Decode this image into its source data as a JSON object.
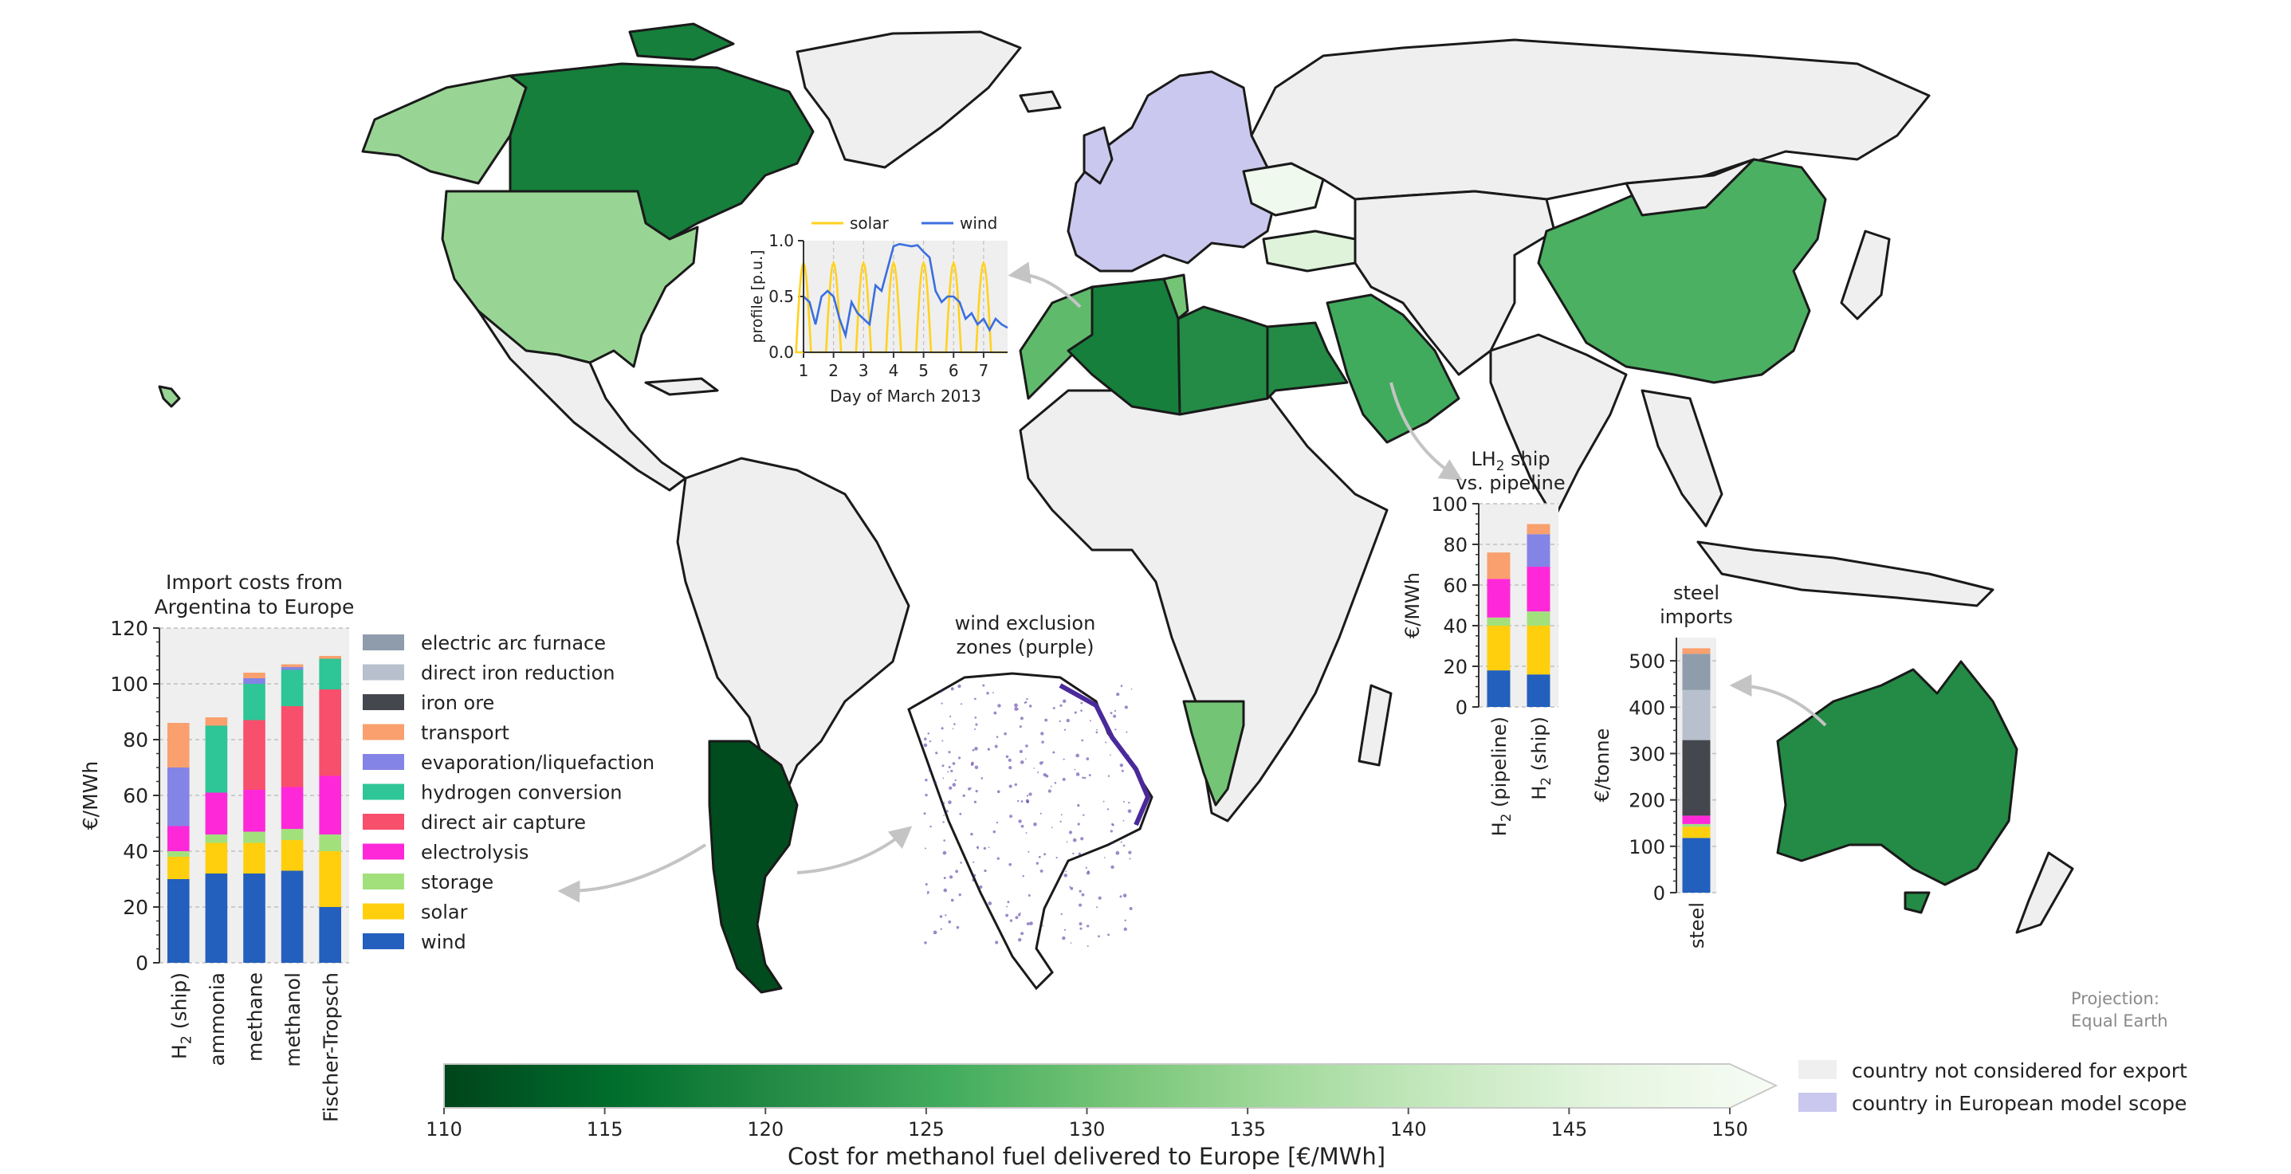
{
  "colors": {
    "country_fill_not_considered": "#efefef",
    "country_fill_europe_scope": "#cac8ee",
    "country_stroke": "#1a1a1a",
    "cmap_stops": [
      "#00441b",
      "#006d2c",
      "#238b45",
      "#41ab5d",
      "#74c476",
      "#a1d99b",
      "#c7e9c0",
      "#e5f5e0",
      "#f7fcf5"
    ],
    "grid": "#bfbfbf",
    "panel_bg": "#efefef",
    "arrow": "#c4c4c4",
    "solar_line": "#ffd21f",
    "wind_line": "#3a6ee0",
    "exclusion": "#4a2a9a"
  },
  "legend": {
    "not_considered": "country not considered for export",
    "europe_scope": "country in European model scope"
  },
  "projection_note": [
    "Projection:",
    "Equal Earth"
  ],
  "colorbar": {
    "label": "Cost for methanol fuel delivered to Europe [€/MWh]",
    "min": 110,
    "max": 150,
    "ticks": [
      "110",
      "115",
      "120",
      "125",
      "130",
      "135",
      "140",
      "145",
      "150"
    ],
    "extend": "max"
  },
  "country_costs": [
    {
      "country": "Canada",
      "value": 118
    },
    {
      "country": "Alaska",
      "value": 134
    },
    {
      "country": "United States",
      "value": 134
    },
    {
      "country": "Morocco",
      "value": 128
    },
    {
      "country": "Algeria",
      "value": 118
    },
    {
      "country": "Tunisia",
      "value": 130
    },
    {
      "country": "Libya",
      "value": 120
    },
    {
      "country": "Egypt",
      "value": 120
    },
    {
      "country": "Saudi Arabia",
      "value": 125
    },
    {
      "country": "China",
      "value": 126
    },
    {
      "country": "Namibia",
      "value": 130
    },
    {
      "country": "Argentina",
      "value": 111
    },
    {
      "country": "Australia",
      "value": 120
    },
    {
      "country": "Turkey",
      "value": 144
    },
    {
      "country": "Ukraine",
      "value": 148
    }
  ],
  "wind_exclusion": {
    "title": [
      "wind exclusion",
      "zones (purple)"
    ]
  },
  "chart_data": [
    {
      "id": "import_costs",
      "type": "bar",
      "stacked": true,
      "title": [
        "Import costs from",
        "Argentina to Europe"
      ],
      "ylabel": "€/MWh",
      "ylim": [
        0,
        120
      ],
      "yticks": [
        "0",
        "20",
        "40",
        "60",
        "80",
        "100",
        "120"
      ],
      "categories": [
        "H2 (ship)",
        "ammonia",
        "methane",
        "methanol",
        "Fischer-Tropsch"
      ],
      "category_labels": [
        {
          "main": "H",
          "sub": "2",
          "rest": " (ship)"
        },
        {
          "main": "ammonia",
          "sub": "",
          "rest": ""
        },
        {
          "main": "methane",
          "sub": "",
          "rest": ""
        },
        {
          "main": "methanol",
          "sub": "",
          "rest": ""
        },
        {
          "main": "Fischer-Tropsch",
          "sub": "",
          "rest": ""
        }
      ],
      "legend_position": "right",
      "series": [
        {
          "name": "wind",
          "color": "#235fbd",
          "values": [
            30,
            32,
            32,
            33,
            20
          ]
        },
        {
          "name": "solar",
          "color": "#ffcf0e",
          "values": [
            8,
            11,
            11,
            11,
            20
          ]
        },
        {
          "name": "storage",
          "color": "#a2e07c",
          "values": [
            2,
            3,
            4,
            4,
            6
          ]
        },
        {
          "name": "electrolysis",
          "color": "#ff28d9",
          "values": [
            9,
            15,
            15,
            15,
            21
          ]
        },
        {
          "name": "direct air capture",
          "color": "#f84f6c",
          "values": [
            0,
            0,
            25,
            29,
            31
          ]
        },
        {
          "name": "hydrogen conversion",
          "color": "#2ec597",
          "values": [
            0,
            24,
            13,
            13,
            11
          ]
        },
        {
          "name": "evaporation/liquefaction",
          "color": "#8484e6",
          "values": [
            21,
            0,
            2,
            1,
            0
          ]
        },
        {
          "name": "transport",
          "color": "#f9a06e",
          "values": [
            16,
            3,
            2,
            1,
            1
          ]
        },
        {
          "name": "iron ore",
          "color": "#45474f",
          "values": [
            0,
            0,
            0,
            0,
            0
          ]
        },
        {
          "name": "direct iron reduction",
          "color": "#b7c0cc",
          "values": [
            0,
            0,
            0,
            0,
            0
          ]
        },
        {
          "name": "electric arc furnace",
          "color": "#8f9cac",
          "values": [
            0,
            0,
            0,
            0,
            0
          ]
        }
      ]
    },
    {
      "id": "ship_vs_pipeline",
      "type": "bar",
      "stacked": true,
      "title": [
        {
          "main": "LH",
          "sub": "2",
          "rest": " ship"
        },
        {
          "main": "vs. pipeline",
          "sub": "",
          "rest": ""
        }
      ],
      "ylabel": "€/MWh",
      "ylim": [
        0,
        100
      ],
      "yticks": [
        "0",
        "20",
        "40",
        "60",
        "80",
        "100"
      ],
      "categories": [
        "H2 (pipeline)",
        "H2 (ship)"
      ],
      "category_labels": [
        {
          "main": "H",
          "sub": "2",
          "rest": " (pipeline)"
        },
        {
          "main": "H",
          "sub": "2",
          "rest": " (ship)"
        }
      ],
      "series": [
        {
          "name": "wind",
          "color": "#235fbd",
          "values": [
            18,
            16
          ]
        },
        {
          "name": "solar",
          "color": "#ffcf0e",
          "values": [
            22,
            24
          ]
        },
        {
          "name": "storage",
          "color": "#a2e07c",
          "values": [
            4,
            7
          ]
        },
        {
          "name": "electrolysis",
          "color": "#ff28d9",
          "values": [
            19,
            22
          ]
        },
        {
          "name": "evaporation/liquefaction",
          "color": "#8484e6",
          "values": [
            0,
            16
          ]
        },
        {
          "name": "transport",
          "color": "#f9a06e",
          "values": [
            13,
            5
          ]
        }
      ]
    },
    {
      "id": "steel_imports",
      "type": "bar",
      "stacked": true,
      "title": [
        "steel",
        "imports"
      ],
      "ylabel": "€/tonne",
      "ylim": [
        0,
        550
      ],
      "yticks": [
        "0",
        "100",
        "200",
        "300",
        "400",
        "500"
      ],
      "categories": [
        "steel"
      ],
      "category_labels": [
        {
          "main": "steel",
          "sub": "",
          "rest": ""
        }
      ],
      "series": [
        {
          "name": "wind",
          "color": "#235fbd",
          "values": [
            118
          ]
        },
        {
          "name": "solar",
          "color": "#ffcf0e",
          "values": [
            24
          ]
        },
        {
          "name": "storage",
          "color": "#a2e07c",
          "values": [
            6
          ]
        },
        {
          "name": "electrolysis",
          "color": "#ff28d9",
          "values": [
            18
          ]
        },
        {
          "name": "iron ore",
          "color": "#45474f",
          "values": [
            163
          ]
        },
        {
          "name": "direct iron reduction",
          "color": "#b7c0cc",
          "values": [
            108
          ]
        },
        {
          "name": "electric arc furnace",
          "color": "#8f9cac",
          "values": [
            78
          ]
        },
        {
          "name": "transport",
          "color": "#f9a06e",
          "values": [
            12
          ]
        }
      ]
    },
    {
      "id": "profile",
      "type": "line",
      "ylabel": "profile [p.u.]",
      "xlabel": "Day of March 2013",
      "xlim": [
        1,
        7.8
      ],
      "ylim": [
        0,
        1
      ],
      "xticks": [
        "1",
        "2",
        "3",
        "4",
        "5",
        "6",
        "7"
      ],
      "yticks": [
        "0.0",
        "0.5",
        "1.0"
      ],
      "legend_position": "top",
      "series": [
        {
          "name": "solar",
          "color": "#ffd21f",
          "kind": "solar"
        },
        {
          "name": "wind",
          "color": "#3a6ee0",
          "x": [
            1.0,
            1.2,
            1.4,
            1.6,
            1.8,
            2.0,
            2.2,
            2.4,
            2.6,
            2.8,
            3.0,
            3.2,
            3.4,
            3.6,
            3.8,
            4.0,
            4.2,
            4.4,
            4.6,
            4.8,
            5.0,
            5.2,
            5.4,
            5.6,
            5.8,
            6.0,
            6.2,
            6.4,
            6.6,
            6.8,
            7.0,
            7.2,
            7.4,
            7.6,
            7.8
          ],
          "y": [
            0.5,
            0.45,
            0.25,
            0.5,
            0.55,
            0.5,
            0.3,
            0.15,
            0.45,
            0.35,
            0.3,
            0.25,
            0.6,
            0.55,
            0.75,
            0.95,
            0.97,
            0.96,
            0.95,
            0.96,
            0.9,
            0.85,
            0.55,
            0.45,
            0.5,
            0.5,
            0.45,
            0.3,
            0.35,
            0.25,
            0.3,
            0.2,
            0.3,
            0.25,
            0.22
          ]
        }
      ]
    }
  ]
}
